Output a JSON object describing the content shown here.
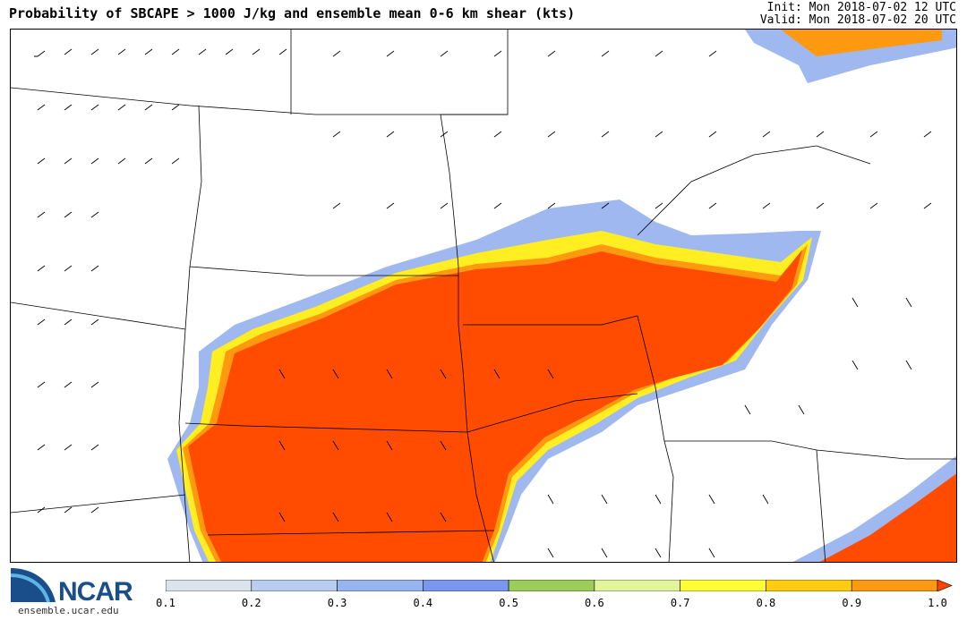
{
  "header": {
    "title": "Probability of SBCAPE > 1000 J/kg and ensemble mean 0-6 km shear (kts)",
    "init": "Init: Mon 2018-07-02 12 UTC",
    "valid": "Valid: Mon 2018-07-02 20 UTC"
  },
  "logo": {
    "name": "NCAR",
    "url": "ensemble.ucar.edu"
  },
  "colorbar": {
    "labels": [
      "0.1",
      "0.2",
      "0.3",
      "0.4",
      "0.5",
      "0.6",
      "0.7",
      "0.8",
      "0.9",
      "1.0"
    ],
    "colors": [
      "#dbe4ec",
      "#b9cdf2",
      "#97b3f0",
      "#7a97ef",
      "#9ccc5a",
      "#e2f59a",
      "#ffff33",
      "#ffcc11",
      "#ff9911",
      "#ff4400"
    ]
  },
  "map": {
    "fill_colors": {
      "high": "#ff4c00",
      "orange": "#ff9910",
      "yellow": "#ffee22",
      "lightgreen": "#e4f6a0",
      "blue": "#a0b8f0",
      "paleblue": "#d0dcef"
    }
  }
}
